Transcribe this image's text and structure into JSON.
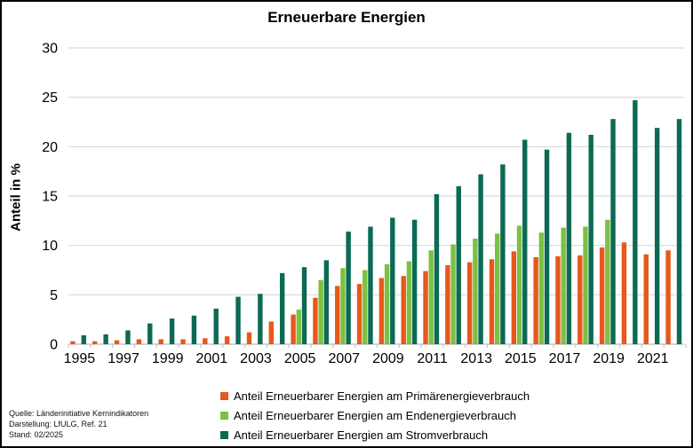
{
  "window": {
    "background": "#FFFFFF",
    "border_color": "#000000"
  },
  "chart": {
    "title": "Erneuerbare Energien"
  },
  "chart_data": {
    "type": "bar",
    "title": "Erneuerbare Energien",
    "xlabel": "",
    "ylabel": "Anteil in %",
    "ylim": [
      0,
      30
    ],
    "yticks": [
      0,
      5,
      10,
      15,
      20,
      25,
      30
    ],
    "grid": "horizontal",
    "gridline_color": "#D9D9D9",
    "axis_color": "#C6C6C6",
    "legend_position": "bottom",
    "categories": [
      1995,
      1996,
      1997,
      1998,
      1999,
      2000,
      2001,
      2002,
      2003,
      2004,
      2005,
      2006,
      2007,
      2008,
      2009,
      2010,
      2011,
      2012,
      2013,
      2014,
      2015,
      2016,
      2017,
      2018,
      2019,
      2020,
      2021,
      2022
    ],
    "xtick_labels": [
      "1995",
      "1997",
      "1999",
      "2001",
      "2003",
      "2005",
      "2007",
      "2009",
      "2011",
      "2013",
      "2015",
      "2017",
      "2019",
      "2021"
    ],
    "series": [
      {
        "name": "Anteil Erneuerbarer Energien am Primärenergieverbrauch",
        "color": "#E7581C",
        "values": [
          0.3,
          0.3,
          0.4,
          0.5,
          0.5,
          0.5,
          0.6,
          0.8,
          1.2,
          2.3,
          3.0,
          4.7,
          5.9,
          6.1,
          6.7,
          6.9,
          7.4,
          8.0,
          8.3,
          8.6,
          9.4,
          8.8,
          8.9,
          9.0,
          9.8,
          10.3,
          9.1,
          9.5
        ]
      },
      {
        "name": "Anteil Erneuerbarer Energien am Endenergieverbrauch",
        "color": "#7CC142",
        "values": [
          null,
          null,
          null,
          null,
          null,
          null,
          null,
          null,
          null,
          null,
          3.5,
          6.5,
          7.7,
          7.5,
          8.1,
          8.4,
          9.5,
          10.1,
          10.7,
          11.2,
          12.0,
          11.3,
          11.8,
          11.9,
          12.6,
          null,
          null,
          null
        ]
      },
      {
        "name": "Anteil Erneuerbarer Energien am Stromverbrauch",
        "color": "#0C6A54",
        "values": [
          0.9,
          1.0,
          1.4,
          2.1,
          2.6,
          2.9,
          3.6,
          4.8,
          5.1,
          7.2,
          7.8,
          8.5,
          11.4,
          11.9,
          12.8,
          12.6,
          15.2,
          16.0,
          17.2,
          18.2,
          20.7,
          19.7,
          21.4,
          21.2,
          22.8,
          24.7,
          21.9,
          22.8
        ]
      }
    ]
  },
  "footer": {
    "lines": [
      "Quelle: Länderinitiative Kernindikatoren",
      "Darstellung: LfULG, Ref. 21",
      "Stand: 02/2025"
    ]
  }
}
